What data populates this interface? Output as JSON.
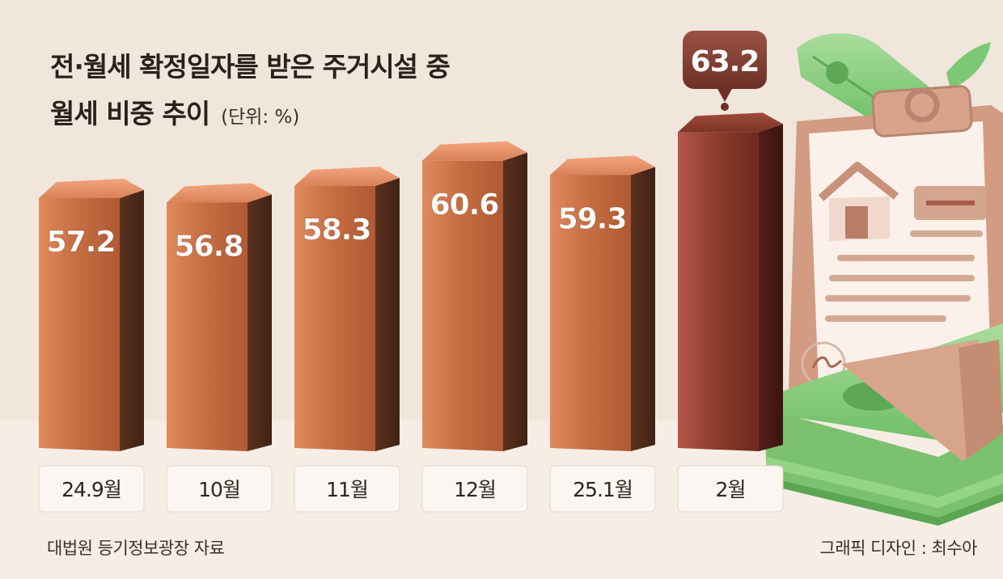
{
  "title_line1": "전·월세 확정일자를 받은 주거시설 중",
  "title_line2": "월세 비중 추이",
  "unit": "(단위: %)",
  "source": "대법원 등기정보광장 자료",
  "credit": "그래픽 디자인 : 최수아",
  "colors": {
    "bar_front": "#c3693f",
    "bar_side": "#4e2a18",
    "highlight_front": "#8c3d2b",
    "highlight_side": "#4a1c15",
    "label_box": "#fbf6f1",
    "callout": "#7d3b2f",
    "money_green": "#8fce84",
    "clipboard": "#d9a790"
  },
  "icons": [
    "money-bill-icon",
    "clipboard-icon",
    "house-icon",
    "money-stack-icon"
  ],
  "chart_data": {
    "type": "bar",
    "categories": [
      "24.9월",
      "10월",
      "11월",
      "12월",
      "25.1월",
      "2월"
    ],
    "values": [
      57.2,
      56.8,
      58.3,
      60.6,
      59.3,
      63.2
    ],
    "value_labels": [
      "57.2",
      "56.8",
      "58.3",
      "60.6",
      "59.3",
      "63.2"
    ],
    "highlight_index": 5,
    "title": "전·월세 확정일자를 받은 주거시설 중 월세 비중 추이",
    "xlabel": "",
    "ylabel": "",
    "grid": false,
    "legend": "none"
  }
}
